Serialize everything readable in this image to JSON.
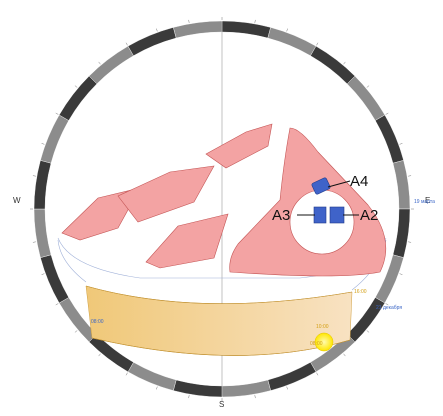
{
  "compass": {
    "west": "W",
    "east": "E",
    "south": "S"
  },
  "blocks": [
    "A4",
    "A3",
    "A2"
  ],
  "dates": {
    "top_right": "19 марта",
    "bottom_right": "21 декабря",
    "left": "08:00"
  },
  "times": {
    "right": "16:00",
    "bottom_a": "10:00",
    "bottom_b": "08:00"
  },
  "colors": {
    "ring_dark": "#3a3a3a",
    "ring_light": "#8c8c8c",
    "building_fill": "#f3a3a3",
    "building_stroke": "#c45555",
    "highlight": "#3f63c9",
    "sun_path_start": "#f0c878",
    "sun_path_end": "#f8e2c2",
    "sun": "#ffee00"
  }
}
